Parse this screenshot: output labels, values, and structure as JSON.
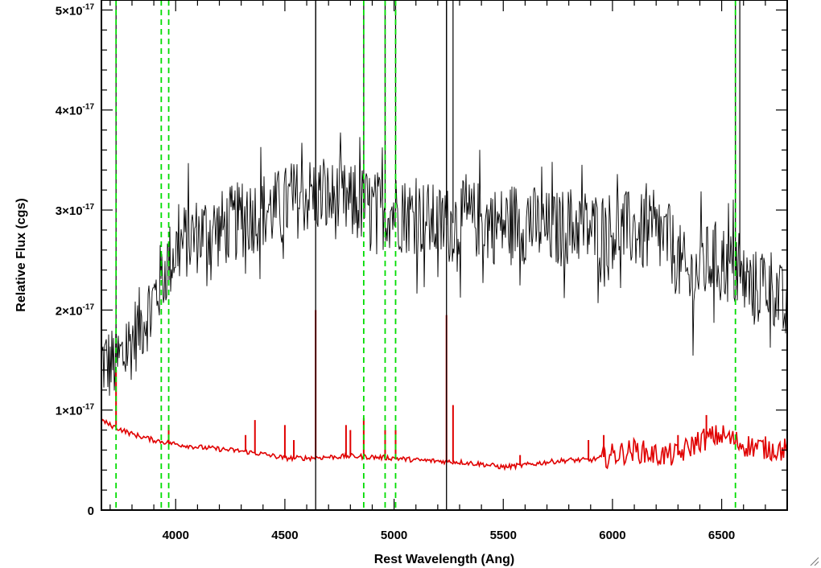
{
  "chart_data": {
    "type": "line",
    "xlabel": "Rest Wavelength (Ang)",
    "ylabel": "Relative Flux (cgs)",
    "xlim": [
      3660,
      6800
    ],
    "ylim": [
      0,
      5.1e-17
    ],
    "grid": false,
    "x_ticks": [
      {
        "value": 4000,
        "label": "4000"
      },
      {
        "value": 4500,
        "label": "4500"
      },
      {
        "value": 5000,
        "label": "5000"
      },
      {
        "value": 5500,
        "label": "5500"
      },
      {
        "value": 6000,
        "label": "6000"
      },
      {
        "value": 6500,
        "label": "6500"
      }
    ],
    "y_ticks": [
      {
        "value": 0,
        "mantissa": "0",
        "exponent": ""
      },
      {
        "value": 1e-17,
        "mantissa": "1×10",
        "exponent": "-17"
      },
      {
        "value": 2e-17,
        "mantissa": "2×10",
        "exponent": "-17"
      },
      {
        "value": 3e-17,
        "mantissa": "3×10",
        "exponent": "-17"
      },
      {
        "value": 4e-17,
        "mantissa": "4×10",
        "exponent": "-17"
      },
      {
        "value": 5e-17,
        "mantissa": "5×10",
        "exponent": "-17"
      }
    ],
    "series": [
      {
        "color": "#000000",
        "style": "noisy spectrum",
        "x": [
          3660,
          3700,
          3750,
          3800,
          3850,
          3900,
          3950,
          4000,
          4050,
          4100,
          4150,
          4200,
          4250,
          4300,
          4350,
          4400,
          4450,
          4500,
          4550,
          4600,
          4650,
          4700,
          4750,
          4800,
          4850,
          4900,
          4950,
          5000,
          5050,
          5100,
          5150,
          5200,
          5250,
          5300,
          5350,
          5400,
          5450,
          5500,
          5550,
          5600,
          5650,
          5700,
          5750,
          5800,
          5850,
          5900,
          5950,
          6000,
          6050,
          6100,
          6150,
          6200,
          6250,
          6300,
          6350,
          6400,
          6450,
          6500,
          6550,
          6600,
          6650,
          6700,
          6750,
          6800
        ],
        "y": [
          1.5e-17,
          1.45e-17,
          1.5e-17,
          1.7e-17,
          1.9e-17,
          2.1e-17,
          2.4e-17,
          2.6e-17,
          2.7e-17,
          2.75e-17,
          2.8e-17,
          2.8e-17,
          2.85e-17,
          2.9e-17,
          2.95e-17,
          3e-17,
          3e-17,
          3.05e-17,
          3.1e-17,
          3.15e-17,
          3.15e-17,
          3.1e-17,
          3.1e-17,
          3.05e-17,
          3.05e-17,
          3e-17,
          3e-17,
          3e-17,
          2.95e-17,
          2.95e-17,
          2.9e-17,
          2.85e-17,
          2.85e-17,
          2.9e-17,
          2.9e-17,
          2.9e-17,
          2.85e-17,
          2.85e-17,
          2.9e-17,
          2.85e-17,
          2.85e-17,
          2.8e-17,
          2.8e-17,
          2.85e-17,
          2.85e-17,
          2.8e-17,
          2.8e-17,
          2.8e-17,
          2.8e-17,
          2.8e-17,
          2.75e-17,
          2.75e-17,
          2.7e-17,
          2.5e-17,
          2.3e-17,
          2.4e-17,
          2.5e-17,
          2.5e-17,
          2.4e-17,
          2.3e-17,
          2.2e-17,
          2.3e-17,
          2.2e-17,
          1.9e-17
        ],
        "noise_amplitude": 4e-18,
        "spikes": [
          {
            "x": 3727,
            "y": 5.1e-17
          },
          {
            "x": 4641,
            "y": 5.1e-17
          },
          {
            "x": 4861,
            "y": 5.1e-17
          },
          {
            "x": 4959,
            "y": 5.1e-17
          },
          {
            "x": 5007,
            "y": 5.1e-17
          },
          {
            "x": 5240,
            "y": 5.1e-17
          },
          {
            "x": 5270,
            "y": 5.1e-17
          },
          {
            "x": 6563,
            "y": 5.1e-17
          },
          {
            "x": 6583,
            "y": 5.1e-17
          }
        ]
      },
      {
        "color": "#e00000",
        "style": "error spectrum",
        "x": [
          3660,
          3700,
          3800,
          3900,
          4000,
          4100,
          4200,
          4300,
          4400,
          4500,
          4600,
          4700,
          4800,
          4900,
          5000,
          5100,
          5200,
          5300,
          5400,
          5500,
          5600,
          5700,
          5800,
          5900,
          6000,
          6100,
          6200,
          6300,
          6400,
          6500,
          6600,
          6700,
          6800
        ],
        "y": [
          9e-18,
          8.5e-18,
          7.6e-18,
          7e-18,
          6.6e-18,
          6.3e-18,
          6.1e-18,
          5.9e-18,
          5.6e-18,
          5.2e-18,
          5.2e-18,
          5.3e-18,
          5.4e-18,
          5.3e-18,
          5.2e-18,
          5e-18,
          4.9e-18,
          4.8e-18,
          4.6e-18,
          4.3e-18,
          4.5e-18,
          4.8e-18,
          5e-18,
          5e-18,
          5.5e-18,
          6e-18,
          5.5e-18,
          5.5e-18,
          7e-18,
          7.5e-18,
          6.5e-18,
          6.2e-18,
          6e-18
        ],
        "spikes": [
          {
            "x": 3727,
            "y": 1.4e-17
          },
          {
            "x": 3968,
            "y": 8.5e-18
          },
          {
            "x": 4320,
            "y": 7.5e-18
          },
          {
            "x": 4363,
            "y": 9e-18
          },
          {
            "x": 4500,
            "y": 8.5e-18
          },
          {
            "x": 4541,
            "y": 7e-18
          },
          {
            "x": 4641,
            "y": 2e-17
          },
          {
            "x": 4780,
            "y": 8.5e-18
          },
          {
            "x": 4800,
            "y": 8e-18
          },
          {
            "x": 4861,
            "y": 9.2e-18
          },
          {
            "x": 4959,
            "y": 8e-18
          },
          {
            "x": 5007,
            "y": 8e-18
          },
          {
            "x": 5240,
            "y": 1.95e-17
          },
          {
            "x": 5270,
            "y": 1.05e-17
          },
          {
            "x": 5577,
            "y": 5.5e-18
          },
          {
            "x": 5890,
            "y": 7e-18
          },
          {
            "x": 5960,
            "y": 7.5e-18
          },
          {
            "x": 6300,
            "y": 7.5e-18
          },
          {
            "x": 6430,
            "y": 9.5e-18
          }
        ]
      }
    ],
    "vertical_lines": [
      {
        "x": 3727,
        "color": "#00dd00",
        "style": "dashed"
      },
      {
        "x": 3934,
        "color": "#00dd00",
        "style": "dashed"
      },
      {
        "x": 3968,
        "color": "#00dd00",
        "style": "dashed"
      },
      {
        "x": 4861,
        "color": "#00dd00",
        "style": "dashed"
      },
      {
        "x": 4959,
        "color": "#00dd00",
        "style": "dashed"
      },
      {
        "x": 5007,
        "color": "#00dd00",
        "style": "dashed"
      },
      {
        "x": 6563,
        "color": "#00dd00",
        "style": "dashed"
      },
      {
        "x": 4641,
        "color": "#000000",
        "style": "solid"
      },
      {
        "x": 5240,
        "color": "#000000",
        "style": "solid"
      }
    ]
  }
}
